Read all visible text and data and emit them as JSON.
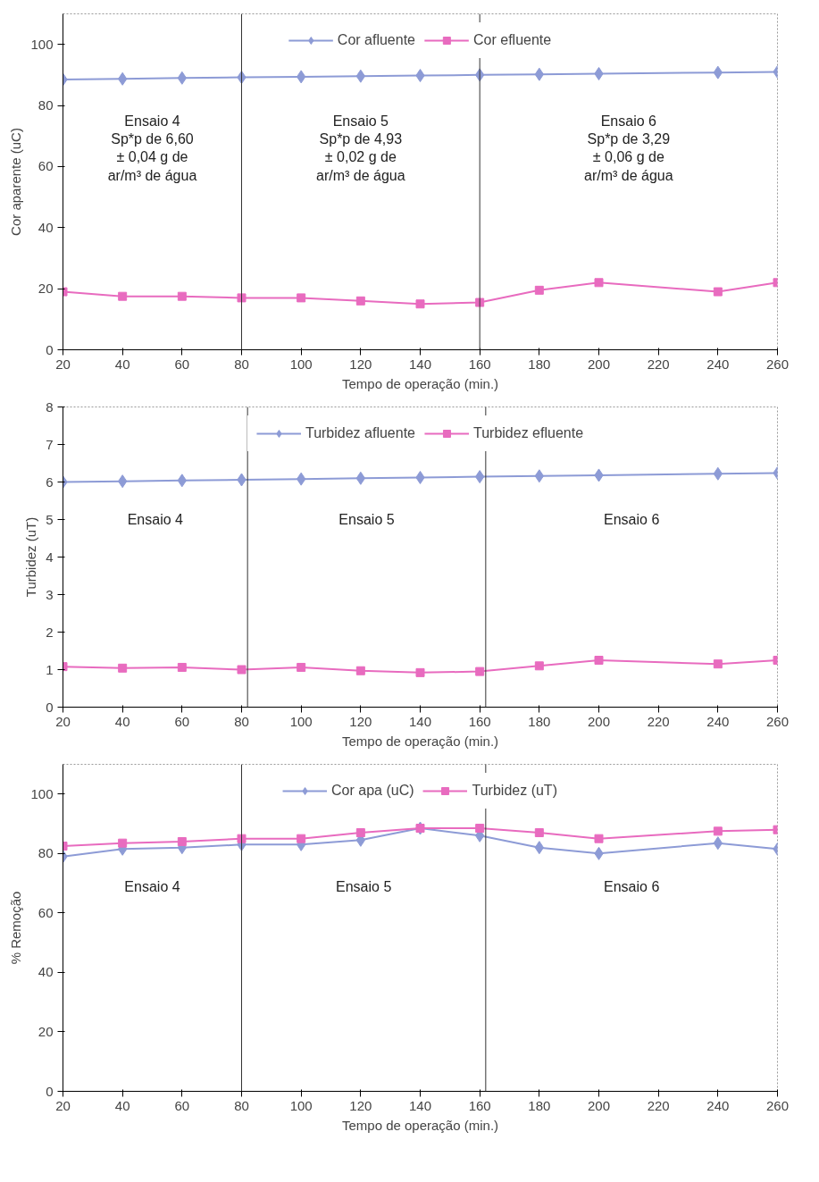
{
  "chart_data": [
    {
      "type": "line",
      "xlabel": "Tempo de operação (min.)",
      "ylabel": "Cor aparente (uC)",
      "x": [
        20,
        40,
        60,
        80,
        100,
        120,
        140,
        160,
        180,
        200,
        240,
        260
      ],
      "series": [
        {
          "name": "Cor afluente",
          "color": "#8d9bd6",
          "marker": "diamond",
          "values": [
            88.5,
            88.7,
            89,
            89.2,
            89.4,
            89.6,
            89.8,
            90,
            90.2,
            90.4,
            90.8,
            91
          ]
        },
        {
          "name": "Cor efluente",
          "color": "#e86bbf",
          "marker": "square",
          "values": [
            19,
            17.5,
            17.5,
            17,
            17,
            16,
            15,
            15.5,
            19.5,
            22,
            19,
            22
          ]
        }
      ],
      "xlim": [
        20,
        260
      ],
      "xticks": [
        20,
        40,
        60,
        80,
        100,
        120,
        140,
        160,
        180,
        200,
        220,
        240,
        260
      ],
      "ylim": [
        0,
        110
      ],
      "yticks": [
        0,
        20,
        40,
        60,
        80,
        100
      ],
      "ref_lines": [
        {
          "axis": "x",
          "value": 80,
          "color": "#333333"
        },
        {
          "axis": "x",
          "value": 160,
          "color": "#333333"
        }
      ],
      "annotations": [
        "Ensaio 4\nSp*p de 6,60\n± 0,04 g de\nar/m³ de água",
        "Ensaio 5\nSp*p de 4,93\n± 0,02 g de\nar/m³ de água",
        "Ensaio 6\nSp*p de 3,29\n± 0,06 g de\nar/m³ de água"
      ],
      "legend": "top",
      "grid": false
    },
    {
      "type": "line",
      "xlabel": "Tempo de operação (min.)",
      "ylabel": "Turbidez (uT)",
      "x": [
        20,
        40,
        60,
        80,
        100,
        120,
        140,
        160,
        180,
        200,
        240,
        260
      ],
      "series": [
        {
          "name": "Turbidez afluente",
          "color": "#8d9bd6",
          "marker": "diamond",
          "values": [
            6.0,
            6.02,
            6.04,
            6.06,
            6.08,
            6.1,
            6.12,
            6.14,
            6.16,
            6.18,
            6.22,
            6.24
          ]
        },
        {
          "name": "Turbidez efluente",
          "color": "#e86bbf",
          "marker": "square",
          "values": [
            1.08,
            1.04,
            1.06,
            1.0,
            1.06,
            0.97,
            0.92,
            0.95,
            1.1,
            1.25,
            1.15,
            1.25
          ]
        }
      ],
      "xlim": [
        20,
        260
      ],
      "xticks": [
        20,
        40,
        60,
        80,
        100,
        120,
        140,
        160,
        180,
        200,
        220,
        240,
        260
      ],
      "ylim": [
        0,
        8
      ],
      "yticks": [
        0,
        1,
        2,
        3,
        4,
        5,
        6,
        7,
        8
      ],
      "ref_lines": [
        {
          "axis": "x",
          "value": 82,
          "color": "#333333"
        },
        {
          "axis": "x",
          "value": 162,
          "color": "#333333"
        }
      ],
      "annotations": [
        "Ensaio 4",
        "Ensaio 5",
        "Ensaio 6"
      ],
      "legend": "top",
      "grid": false
    },
    {
      "type": "line",
      "xlabel": "Tempo de operação (min.)",
      "ylabel": "% Remoção",
      "x": [
        20,
        40,
        60,
        80,
        100,
        120,
        140,
        160,
        180,
        200,
        240,
        260
      ],
      "series": [
        {
          "name": "Cor apa (uC)",
          "color": "#8d9bd6",
          "marker": "diamond",
          "values": [
            79,
            81.5,
            82,
            83,
            83,
            84.5,
            88.5,
            86,
            82,
            80,
            83.5,
            81.5
          ]
        },
        {
          "name": "Turbidez (uT)",
          "color": "#e86bbf",
          "marker": "square",
          "values": [
            82.5,
            83.5,
            84,
            85,
            85,
            87,
            88.5,
            88.5,
            87,
            85,
            87.5,
            88
          ]
        }
      ],
      "xlim": [
        20,
        260
      ],
      "xticks": [
        20,
        40,
        60,
        80,
        100,
        120,
        140,
        160,
        180,
        200,
        220,
        240,
        260
      ],
      "ylim": [
        0,
        110
      ],
      "yticks": [
        0,
        20,
        40,
        60,
        80,
        100
      ],
      "ref_lines": [
        {
          "axis": "x",
          "value": 80,
          "color": "#333333"
        },
        {
          "axis": "x",
          "value": 162,
          "color": "#333333"
        }
      ],
      "annotations": [
        "Ensaio 4",
        "Ensaio 5",
        "Ensaio 6"
      ],
      "legend": "top",
      "grid": false
    }
  ]
}
